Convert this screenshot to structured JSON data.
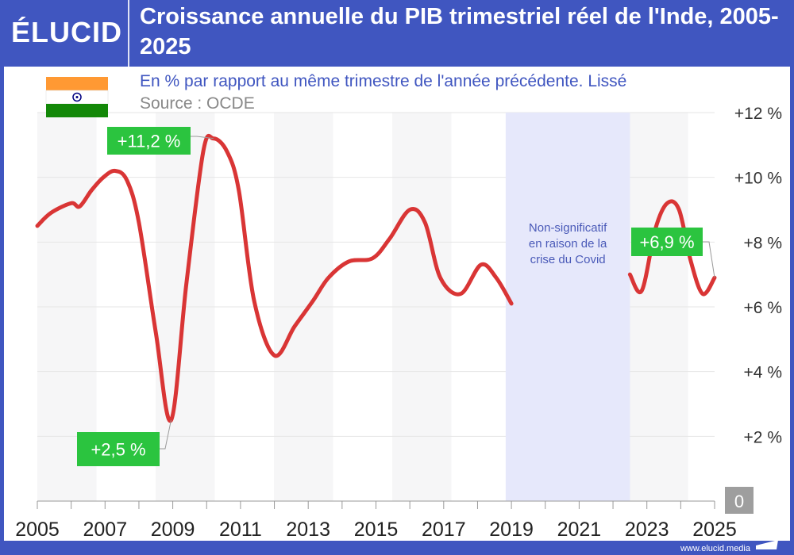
{
  "header": {
    "logo": "ÉLUCID",
    "title": "Croissance annuelle du PIB trimestriel réel de l'Inde, 2005-2025"
  },
  "subtitle": "En % par rapport au même trimestre de l'année précédente. Lissé",
  "source": "Source : OCDE",
  "footer": "www.elucid.media",
  "colors": {
    "brand": "#4056c0",
    "line": "#d93535",
    "label_bg": "#2bc43f",
    "covid_band": "#e6e8fb",
    "subtitle": "#4056c0"
  },
  "chart_data": {
    "type": "line",
    "xlim": [
      2005,
      2025
    ],
    "ylim": [
      0,
      12
    ],
    "x_ticks": [
      "2005",
      "2007",
      "2009",
      "2011",
      "2013",
      "2015",
      "2017",
      "2019",
      "2021",
      "2023",
      "2025"
    ],
    "y_ticks": [
      "0",
      "+2 %",
      "+4 %",
      "+6 %",
      "+8 %",
      "+10 %",
      "+12 %"
    ],
    "grid": true,
    "series": [
      {
        "segment": "before",
        "points": [
          [
            2005.0,
            8.5
          ],
          [
            2005.4,
            8.9
          ],
          [
            2006.0,
            9.2
          ],
          [
            2006.25,
            9.1
          ],
          [
            2006.6,
            9.6
          ],
          [
            2006.95,
            10.0
          ],
          [
            2007.3,
            10.2
          ],
          [
            2007.65,
            9.9
          ],
          [
            2008.0,
            8.6
          ],
          [
            2008.5,
            5.2
          ],
          [
            2008.95,
            2.5
          ],
          [
            2009.4,
            6.7
          ],
          [
            2009.9,
            10.8
          ],
          [
            2010.2,
            11.2
          ],
          [
            2010.6,
            10.8
          ],
          [
            2010.95,
            9.6
          ],
          [
            2011.4,
            6.2
          ],
          [
            2012.0,
            4.5
          ],
          [
            2012.6,
            5.4
          ],
          [
            2013.15,
            6.2
          ],
          [
            2013.6,
            6.9
          ],
          [
            2014.2,
            7.4
          ],
          [
            2014.9,
            7.5
          ],
          [
            2015.4,
            8.1
          ],
          [
            2016.0,
            9.0
          ],
          [
            2016.45,
            8.6
          ],
          [
            2016.9,
            6.9
          ],
          [
            2017.5,
            6.4
          ],
          [
            2018.1,
            7.3
          ],
          [
            2018.55,
            6.9
          ],
          [
            2019.0,
            6.1
          ]
        ]
      },
      {
        "segment": "after",
        "points": [
          [
            2022.5,
            7.0
          ],
          [
            2022.85,
            6.5
          ],
          [
            2023.25,
            8.4
          ],
          [
            2023.6,
            9.2
          ],
          [
            2023.95,
            9.0
          ],
          [
            2024.3,
            7.4
          ],
          [
            2024.65,
            6.4
          ],
          [
            2025.0,
            6.9
          ]
        ]
      }
    ],
    "shaded_region": {
      "from": 2018.83,
      "to": 2022.5,
      "label": [
        "Non-significatif",
        "en raison de la",
        "crise du Covid"
      ]
    },
    "annotations": [
      {
        "text": "+11,2 %",
        "x": 2010.2,
        "y": 11.2
      },
      {
        "text": "+2,5 %",
        "x": 2008.95,
        "y": 2.5
      },
      {
        "text": "+6,9 %",
        "x": 2025.0,
        "y": 6.9
      }
    ]
  }
}
